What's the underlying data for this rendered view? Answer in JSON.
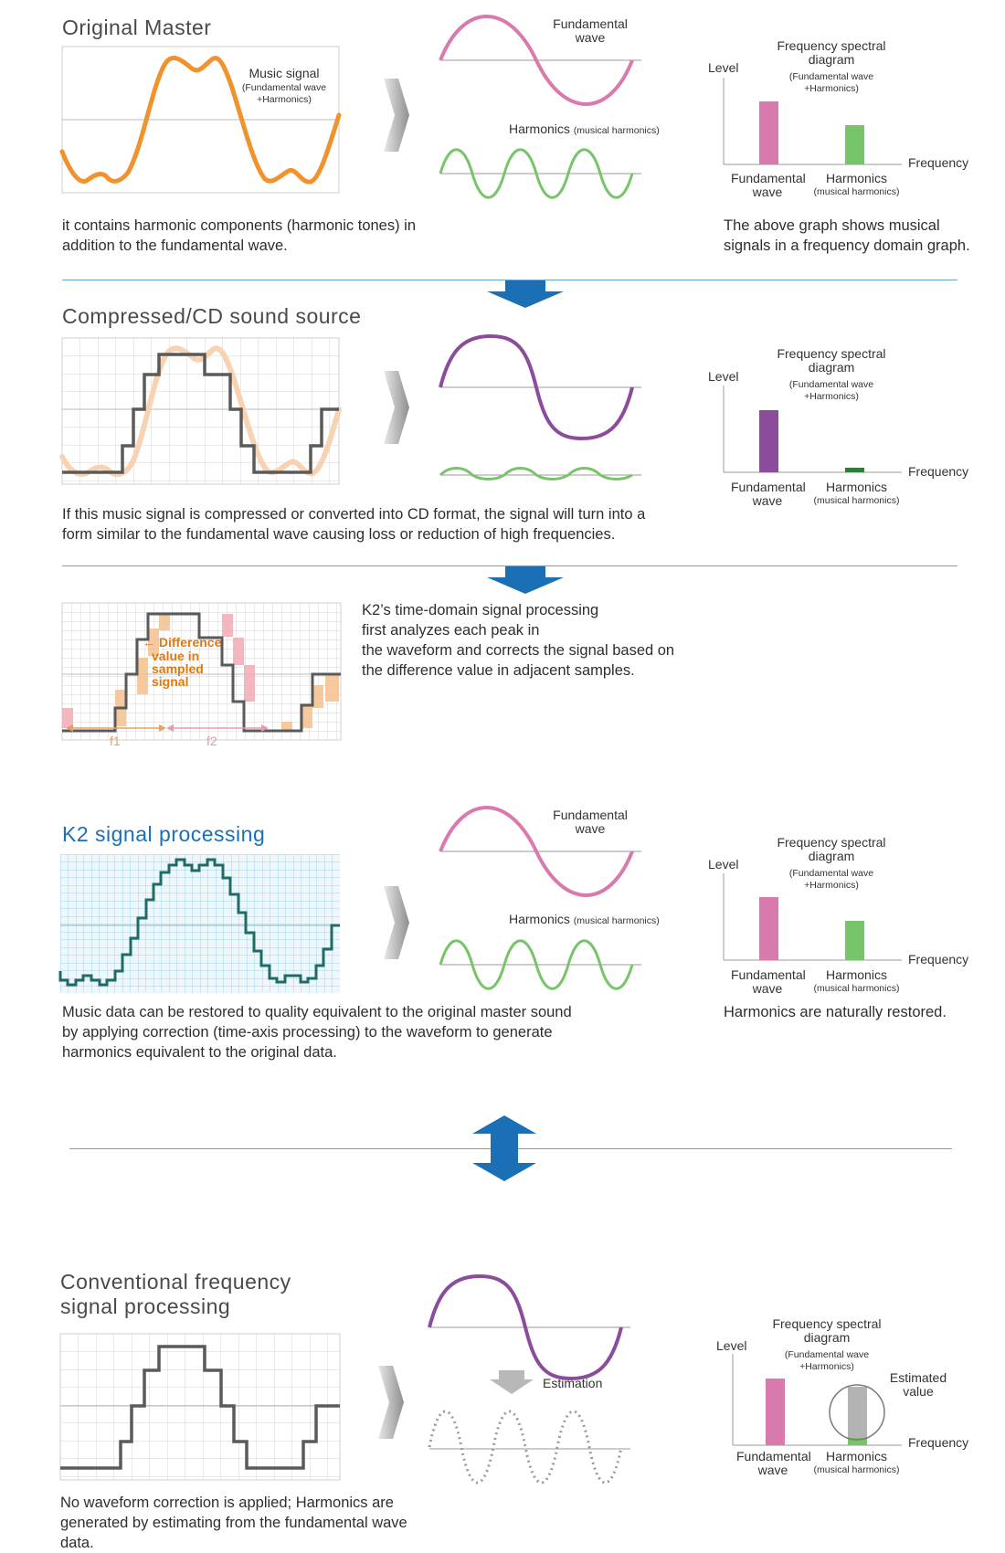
{
  "colors": {
    "pink": "#d97aae",
    "green": "#78c46a",
    "darkgreen": "#2f7d3c",
    "purple": "#8b4c9c",
    "orange": "#f0922e",
    "blue": "#1a6fb5",
    "teal": "#1f6b68",
    "gray": "#5a5a5a"
  },
  "icons": [
    "gray-chevron-arrow-icon",
    "blue-down-arrow-icon",
    "blue-double-arrow-icon"
  ],
  "section1": {
    "title": "Original Master",
    "signal_label": "Music signal",
    "signal_sub1": "(Fundamental wave",
    "signal_sub2": "+Harmonics)",
    "fundamental_label1": "Fundamental",
    "fundamental_label2": "wave",
    "harmonics_label": "Harmonics",
    "harmonics_sub": "(musical harmonics)",
    "desc": "it contains harmonic components (harmonic tones) in addition to the fundamental wave.",
    "right_desc": "The above graph shows musical signals in a frequency domain graph."
  },
  "section2": {
    "title": "Compressed/CD sound source",
    "desc": "If this music signal is compressed or converted into CD format, the signal will turn into a form similar to the fundamental wave causing loss or reduction of high frequencies."
  },
  "section3": {
    "diff_label1": "Difference",
    "diff_label2": "value in",
    "diff_label3": "sampled",
    "diff_label4": "signal",
    "f1": "f1",
    "f2": "f2",
    "desc1": "K2’s time-domain signal processing",
    "desc2": "first analyzes each peak in",
    "desc3": "the waveform and corrects the signal based on",
    "desc4": "the difference value in adjacent samples."
  },
  "section4": {
    "title": "K2 signal processing",
    "desc": "Music data can be restored to quality equivalent to the original master sound by applying correction (time-axis processing) to the waveform to generate harmonics equivalent to the original data.",
    "right_desc": "Harmonics are naturally restored."
  },
  "section5": {
    "title1": "Conventional frequency",
    "title2": "signal processing",
    "estimation": "Estimation",
    "estimated1": "Estimated",
    "estimated2": "value",
    "desc": "No waveform correction is applied; Harmonics are generated by estimating from the fundamental wave data."
  },
  "spectral": {
    "title1": "Frequency spectral",
    "title2": "diagram",
    "sub1": "(Fundamental wave",
    "sub2": "+Harmonics)",
    "level": "Level",
    "frequency": "Frequency",
    "fund1": "Fundamental",
    "fund2": "wave",
    "harm": "Harmonics",
    "harm_sub": "(musical harmonics)"
  },
  "chart_data": [
    {
      "type": "bar",
      "categories": [
        "Fundamental wave",
        "Harmonics"
      ],
      "values": [
        1.0,
        0.62
      ],
      "xlabel": "Frequency",
      "ylabel": "Level"
    },
    {
      "type": "bar",
      "categories": [
        "Fundamental wave",
        "Harmonics"
      ],
      "values": [
        1.0,
        0.06
      ],
      "xlabel": "Frequency",
      "ylabel": "Level"
    },
    {
      "type": "bar",
      "categories": [
        "Fundamental wave",
        "Harmonics"
      ],
      "values": [
        1.0,
        0.62
      ],
      "xlabel": "Frequency",
      "ylabel": "Level"
    },
    {
      "type": "bar",
      "categories": [
        "Fundamental wave",
        "Harmonics"
      ],
      "values": [
        1.0,
        0.88
      ],
      "xlabel": "Frequency",
      "ylabel": "Level"
    }
  ]
}
